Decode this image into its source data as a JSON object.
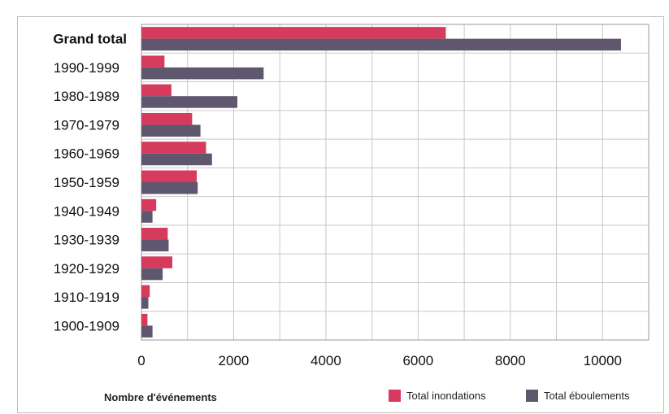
{
  "chart_data": {
    "type": "bar",
    "orientation": "horizontal",
    "categories": [
      "Grand total",
      "1990-1999",
      "1980-1989",
      "1970-1979",
      "1960-1969",
      "1950-1959",
      "1940-1949",
      "1930-1939",
      "1920-1929",
      "1910-1919",
      "1900-1909"
    ],
    "series": [
      {
        "name": "Total inondations",
        "color": "#d63a5c",
        "values": [
          6600,
          500,
          650,
          1100,
          1400,
          1200,
          320,
          570,
          670,
          180,
          130
        ]
      },
      {
        "name": "Total éboulements",
        "color": "#5f576e",
        "values": [
          10400,
          2650,
          2080,
          1280,
          1530,
          1220,
          240,
          590,
          460,
          150,
          240
        ]
      }
    ],
    "xlabel": "Nombre d'événements",
    "xticks": [
      "0",
      "2000",
      "4000",
      "6000",
      "8000",
      "10000"
    ],
    "xlim": [
      0,
      11000
    ],
    "grid": true,
    "legend_position": "bottom-right"
  }
}
